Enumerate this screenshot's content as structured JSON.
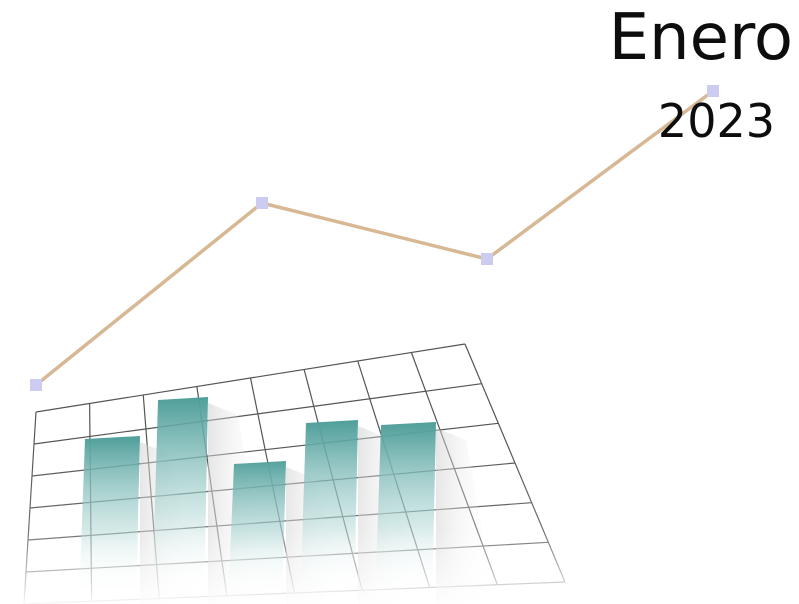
{
  "heading": {
    "month": "Enero",
    "year": "2023"
  },
  "colors": {
    "line": "#d7b894",
    "marker": "#ccccf0",
    "bar_top": "#4f9e9a",
    "grid": "#555555",
    "text": "#0d0d0d"
  }
}
